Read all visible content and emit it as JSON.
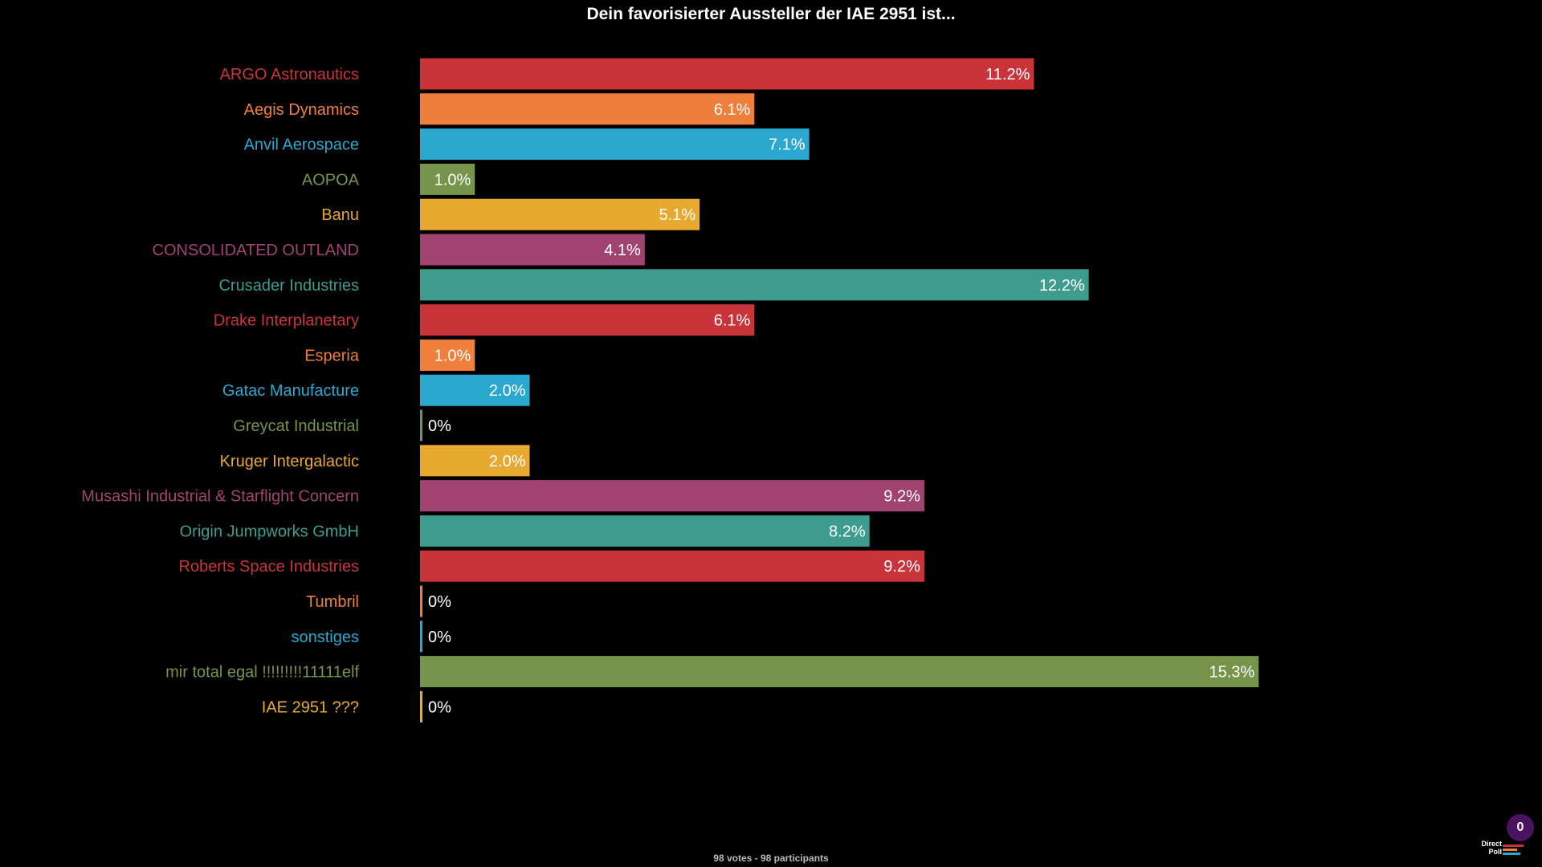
{
  "header": {
    "title": "Dein favorisierter Aussteller der IAE 2951 ist..."
  },
  "footer": {
    "summary": "98 votes - 98 participants",
    "counter": "0",
    "logo_text": "Direct Poll"
  },
  "colors": {
    "background": "#000000",
    "red": "#c9343b",
    "orange": "#f07f3c",
    "blue": "#2aa8d0",
    "green": "#76944a",
    "yellow": "#e8a930",
    "purple": "#a04370",
    "teal": "#3e9c8f"
  },
  "chart_data": {
    "type": "bar",
    "orientation": "horizontal",
    "title": "Dein favorisierter Aussteller der IAE 2951 ist...",
    "xlim": [
      0,
      20
    ],
    "grid": false,
    "legend": "none",
    "categories": [
      "ARGO Astronautics",
      "Aegis Dynamics",
      "Anvil Aerospace",
      "AOPOA",
      "Banu",
      "CONSOLIDATED OUTLAND",
      "Crusader Industries",
      "Drake Interplanetary",
      "Esperia",
      "Gatac Manufacture",
      "Greycat Industrial",
      "Kruger Intergalactic",
      "Musashi Industrial & Starflight Concern",
      "Origin Jumpworks GmbH",
      "Roberts Space Industries",
      "Tumbril",
      "sonstiges",
      "mir total egal !!!!!!!!!11111elf",
      "IAE 2951 ???"
    ],
    "values": [
      11.2,
      6.1,
      7.1,
      1.0,
      5.1,
      4.1,
      12.2,
      6.1,
      1.0,
      2.0,
      0,
      2.0,
      9.2,
      8.2,
      9.2,
      0,
      0,
      15.3,
      0
    ],
    "value_labels": [
      "11.2%",
      "6.1%",
      "7.1%",
      "1.0%",
      "5.1%",
      "4.1%",
      "12.2%",
      "6.1%",
      "1.0%",
      "2.0%",
      "0%",
      "2.0%",
      "9.2%",
      "8.2%",
      "9.2%",
      "0%",
      "0%",
      "15.3%",
      "0%"
    ],
    "colors": [
      "#c9343b",
      "#f07f3c",
      "#2aa8d0",
      "#76944a",
      "#e8a930",
      "#a04370",
      "#3e9c8f",
      "#c9343b",
      "#f07f3c",
      "#2aa8d0",
      "#76944a",
      "#e8a930",
      "#a04370",
      "#3e9c8f",
      "#c9343b",
      "#f07f3c",
      "#2aa8d0",
      "#76944a",
      "#e8a930"
    ]
  }
}
